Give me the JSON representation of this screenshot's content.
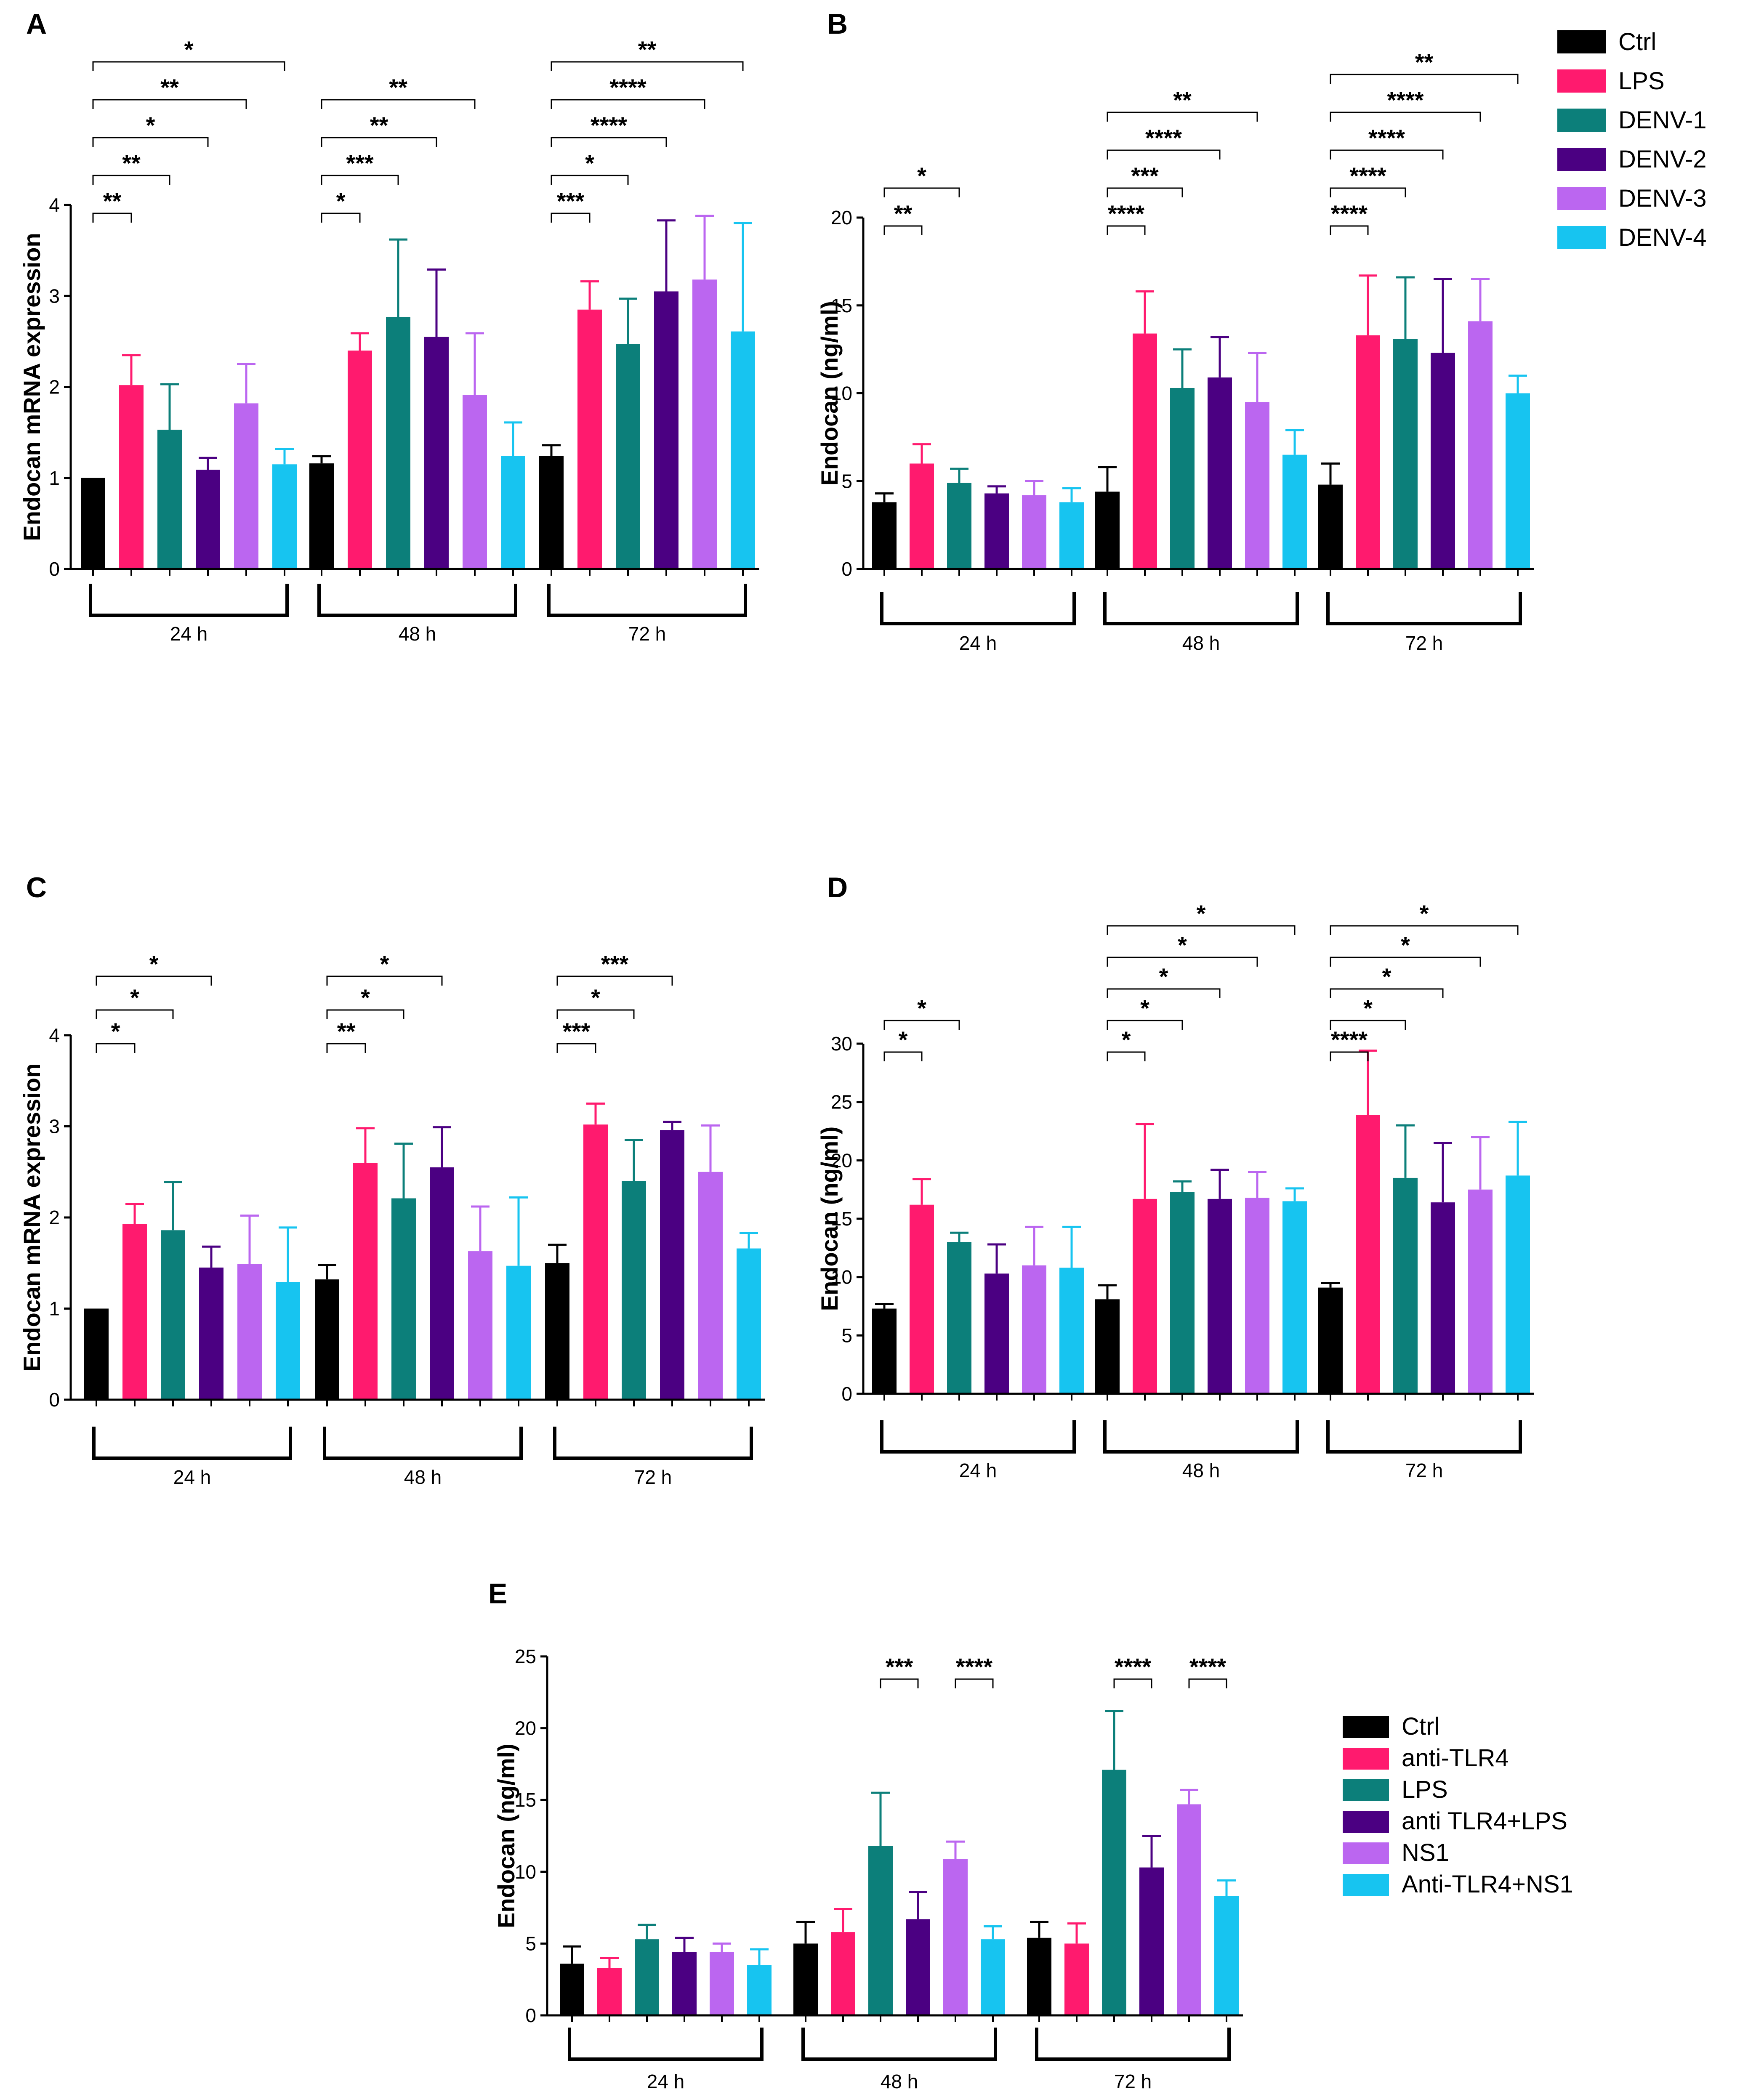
{
  "colors": {
    "ctrl": "#000000",
    "pink": "#ff1a6e",
    "teal": "#0c7f7a",
    "purple": "#4b0082",
    "lilac": "#bb66f0",
    "cyan": "#17c4f0"
  },
  "legends": [
    {
      "id": "legend-top",
      "entries": [
        {
          "label": "Ctrl",
          "color": "#000000"
        },
        {
          "label": "LPS",
          "color": "#ff1a6e"
        },
        {
          "label": "DENV-1",
          "color": "#0c7f7a"
        },
        {
          "label": "DENV-2",
          "color": "#4b0082"
        },
        {
          "label": "DENV-3",
          "color": "#bb66f0"
        },
        {
          "label": "DENV-4",
          "color": "#17c4f0"
        }
      ]
    },
    {
      "id": "legend-e",
      "entries": [
        {
          "label": "Ctrl",
          "color": "#000000"
        },
        {
          "label": "anti-TLR4",
          "color": "#ff1a6e"
        },
        {
          "label": "LPS",
          "color": "#0c7f7a"
        },
        {
          "label": "anti TLR4+LPS",
          "color": "#4b0082"
        },
        {
          "label": "NS1",
          "color": "#bb66f0"
        },
        {
          "label": "Anti-TLR4+NS1",
          "color": "#17c4f0"
        }
      ]
    }
  ],
  "chart_data": [
    {
      "panel": "A",
      "type": "bar",
      "ylabel": "Endocan mRNA expression",
      "ylim": [
        0,
        4
      ],
      "yticks": [
        "0",
        "1",
        "2",
        "3",
        "4"
      ],
      "groups": [
        "24 h",
        "48 h",
        "72 h"
      ],
      "series": [
        {
          "name": "Ctrl",
          "values": [
            1.0,
            1.16,
            1.24
          ],
          "errors": [
            0.0,
            0.08,
            0.12
          ]
        },
        {
          "name": "LPS",
          "values": [
            2.02,
            2.4,
            2.85
          ],
          "errors": [
            0.33,
            0.19,
            0.31
          ]
        },
        {
          "name": "DENV-1",
          "values": [
            1.53,
            2.77,
            2.47
          ],
          "errors": [
            0.5,
            0.85,
            0.5
          ]
        },
        {
          "name": "DENV-2",
          "values": [
            1.09,
            2.55,
            3.05
          ],
          "errors": [
            0.13,
            0.74,
            0.78
          ]
        },
        {
          "name": "DENV-3",
          "values": [
            1.82,
            1.91,
            3.18
          ],
          "errors": [
            0.43,
            0.68,
            0.7
          ]
        },
        {
          "name": "DENV-4",
          "values": [
            1.15,
            1.24,
            2.61
          ],
          "errors": [
            0.17,
            0.37,
            1.19
          ]
        }
      ],
      "significance": [
        {
          "group": 0,
          "to": 1,
          "stars": "**"
        },
        {
          "group": 0,
          "to": 2,
          "stars": "**"
        },
        {
          "group": 0,
          "to": 3,
          "stars": "*"
        },
        {
          "group": 0,
          "to": 4,
          "stars": "**"
        },
        {
          "group": 0,
          "to": 5,
          "stars": "*"
        },
        {
          "group": 1,
          "to": 1,
          "stars": "*"
        },
        {
          "group": 1,
          "to": 2,
          "stars": "***"
        },
        {
          "group": 1,
          "to": 3,
          "stars": "**"
        },
        {
          "group": 1,
          "to": 4,
          "stars": "**"
        },
        {
          "group": 2,
          "to": 1,
          "stars": "***"
        },
        {
          "group": 2,
          "to": 2,
          "stars": "*"
        },
        {
          "group": 2,
          "to": 3,
          "stars": "****"
        },
        {
          "group": 2,
          "to": 4,
          "stars": "****"
        },
        {
          "group": 2,
          "to": 5,
          "stars": "**"
        }
      ]
    },
    {
      "panel": "B",
      "type": "bar",
      "ylabel": "Endocan (ng/ml)",
      "ylim": [
        0,
        20
      ],
      "yticks": [
        "0",
        "5",
        "10",
        "15",
        "20"
      ],
      "groups": [
        "24 h",
        "48 h",
        "72 h"
      ],
      "series": [
        {
          "name": "Ctrl",
          "values": [
            3.8,
            4.4,
            4.8
          ],
          "errors": [
            0.5,
            1.4,
            1.2
          ]
        },
        {
          "name": "LPS",
          "values": [
            6.0,
            13.4,
            13.3
          ],
          "errors": [
            1.1,
            2.4,
            3.4
          ]
        },
        {
          "name": "DENV-1",
          "values": [
            4.9,
            10.3,
            13.1
          ],
          "errors": [
            0.8,
            2.2,
            3.5
          ]
        },
        {
          "name": "DENV-2",
          "values": [
            4.3,
            10.9,
            12.3
          ],
          "errors": [
            0.4,
            2.3,
            4.2
          ]
        },
        {
          "name": "DENV-3",
          "values": [
            4.2,
            9.5,
            14.1
          ],
          "errors": [
            0.8,
            2.8,
            2.4
          ]
        },
        {
          "name": "DENV-4",
          "values": [
            3.8,
            6.5,
            10.0
          ],
          "errors": [
            0.8,
            1.4,
            1.0
          ]
        }
      ],
      "significance": [
        {
          "group": 0,
          "to": 1,
          "stars": "**"
        },
        {
          "group": 0,
          "to": 2,
          "stars": "*"
        },
        {
          "group": 1,
          "to": 1,
          "stars": "****"
        },
        {
          "group": 1,
          "to": 2,
          "stars": "***"
        },
        {
          "group": 1,
          "to": 3,
          "stars": "****"
        },
        {
          "group": 1,
          "to": 4,
          "stars": "**"
        },
        {
          "group": 2,
          "to": 1,
          "stars": "****"
        },
        {
          "group": 2,
          "to": 2,
          "stars": "****"
        },
        {
          "group": 2,
          "to": 3,
          "stars": "****"
        },
        {
          "group": 2,
          "to": 4,
          "stars": "****"
        },
        {
          "group": 2,
          "to": 5,
          "stars": "**"
        }
      ]
    },
    {
      "panel": "C",
      "type": "bar",
      "ylabel": "Endocan mRNA expression",
      "ylim": [
        0,
        4
      ],
      "yticks": [
        "0",
        "1",
        "2",
        "3",
        "4"
      ],
      "groups": [
        "24 h",
        "48 h",
        "72 h"
      ],
      "series": [
        {
          "name": "Ctrl",
          "values": [
            1.0,
            1.32,
            1.5
          ],
          "errors": [
            0.0,
            0.16,
            0.2
          ]
        },
        {
          "name": "LPS",
          "values": [
            1.93,
            2.6,
            3.02
          ],
          "errors": [
            0.22,
            0.38,
            0.23
          ]
        },
        {
          "name": "DENV-1",
          "values": [
            1.86,
            2.21,
            2.4
          ],
          "errors": [
            0.53,
            0.6,
            0.45
          ]
        },
        {
          "name": "DENV-2",
          "values": [
            1.45,
            2.55,
            2.96
          ],
          "errors": [
            0.23,
            0.44,
            0.09
          ]
        },
        {
          "name": "DENV-3",
          "values": [
            1.49,
            1.63,
            2.5
          ],
          "errors": [
            0.53,
            0.49,
            0.51
          ]
        },
        {
          "name": "DENV-4",
          "values": [
            1.29,
            1.47,
            1.66
          ],
          "errors": [
            0.6,
            0.75,
            0.17
          ]
        }
      ],
      "significance": [
        {
          "group": 0,
          "to": 1,
          "stars": "*"
        },
        {
          "group": 0,
          "to": 2,
          "stars": "*"
        },
        {
          "group": 0,
          "to": 3,
          "stars": "*"
        },
        {
          "group": 1,
          "to": 1,
          "stars": "**"
        },
        {
          "group": 1,
          "to": 2,
          "stars": "*"
        },
        {
          "group": 1,
          "to": 3,
          "stars": "*"
        },
        {
          "group": 2,
          "to": 1,
          "stars": "***"
        },
        {
          "group": 2,
          "to": 2,
          "stars": "*"
        },
        {
          "group": 2,
          "to": 3,
          "stars": "***"
        }
      ]
    },
    {
      "panel": "D",
      "type": "bar",
      "ylabel": "Endocan (ng/ml)",
      "ylim": [
        0,
        30
      ],
      "yticks": [
        "0",
        "5",
        "10",
        "15",
        "20",
        "25",
        "30"
      ],
      "groups": [
        "24 h",
        "48 h",
        "72 h"
      ],
      "series": [
        {
          "name": "Ctrl",
          "values": [
            7.3,
            8.1,
            9.1
          ],
          "errors": [
            0.4,
            1.2,
            0.4
          ]
        },
        {
          "name": "LPS",
          "values": [
            16.2,
            16.7,
            23.9
          ],
          "errors": [
            2.2,
            6.4,
            5.5
          ]
        },
        {
          "name": "DENV-1",
          "values": [
            13.0,
            17.3,
            18.5
          ],
          "errors": [
            0.8,
            0.9,
            4.5
          ]
        },
        {
          "name": "DENV-2",
          "values": [
            10.3,
            16.7,
            16.4
          ],
          "errors": [
            2.5,
            2.5,
            5.1
          ]
        },
        {
          "name": "DENV-3",
          "values": [
            11.0,
            16.8,
            17.5
          ],
          "errors": [
            3.3,
            2.2,
            4.5
          ]
        },
        {
          "name": "DENV-4",
          "values": [
            10.8,
            16.5,
            18.7
          ],
          "errors": [
            3.5,
            1.1,
            4.6
          ]
        }
      ],
      "significance": [
        {
          "group": 0,
          "to": 1,
          "stars": "*"
        },
        {
          "group": 0,
          "to": 2,
          "stars": "*"
        },
        {
          "group": 1,
          "to": 1,
          "stars": "*"
        },
        {
          "group": 1,
          "to": 2,
          "stars": "*"
        },
        {
          "group": 1,
          "to": 3,
          "stars": "*"
        },
        {
          "group": 1,
          "to": 4,
          "stars": "*"
        },
        {
          "group": 1,
          "to": 5,
          "stars": "*"
        },
        {
          "group": 2,
          "to": 1,
          "stars": "****"
        },
        {
          "group": 2,
          "to": 2,
          "stars": "*"
        },
        {
          "group": 2,
          "to": 3,
          "stars": "*"
        },
        {
          "group": 2,
          "to": 4,
          "stars": "*"
        },
        {
          "group": 2,
          "to": 5,
          "stars": "*"
        }
      ]
    },
    {
      "panel": "E",
      "type": "bar",
      "ylabel": "Endocan (ng/ml)",
      "ylim": [
        0,
        25
      ],
      "yticks": [
        "0",
        "5",
        "10",
        "15",
        "20",
        "25"
      ],
      "groups": [
        "24 h",
        "48 h",
        "72 h"
      ],
      "series": [
        {
          "name": "Ctrl",
          "values": [
            3.6,
            5.0,
            5.4
          ],
          "errors": [
            1.2,
            1.5,
            1.1
          ]
        },
        {
          "name": "anti-TLR4",
          "values": [
            3.3,
            5.8,
            5.0
          ],
          "errors": [
            0.7,
            1.6,
            1.4
          ]
        },
        {
          "name": "LPS",
          "values": [
            5.3,
            11.8,
            17.1
          ],
          "errors": [
            1.0,
            3.7,
            4.1
          ]
        },
        {
          "name": "anti TLR4+LPS",
          "values": [
            4.4,
            6.7,
            10.3
          ],
          "errors": [
            1.0,
            1.9,
            2.2
          ]
        },
        {
          "name": "NS1",
          "values": [
            4.4,
            10.9,
            14.7
          ],
          "errors": [
            0.6,
            1.2,
            1.0
          ]
        },
        {
          "name": "Anti-TLR4+NS1",
          "values": [
            3.5,
            5.3,
            8.3
          ],
          "errors": [
            1.1,
            0.9,
            1.1
          ]
        }
      ],
      "significance": [
        {
          "group": 1,
          "from": 2,
          "to": 3,
          "stars": "***"
        },
        {
          "group": 1,
          "from": 4,
          "to": 5,
          "stars": "****"
        },
        {
          "group": 2,
          "from": 2,
          "to": 3,
          "stars": "****"
        },
        {
          "group": 2,
          "from": 4,
          "to": 5,
          "stars": "****"
        }
      ]
    }
  ]
}
